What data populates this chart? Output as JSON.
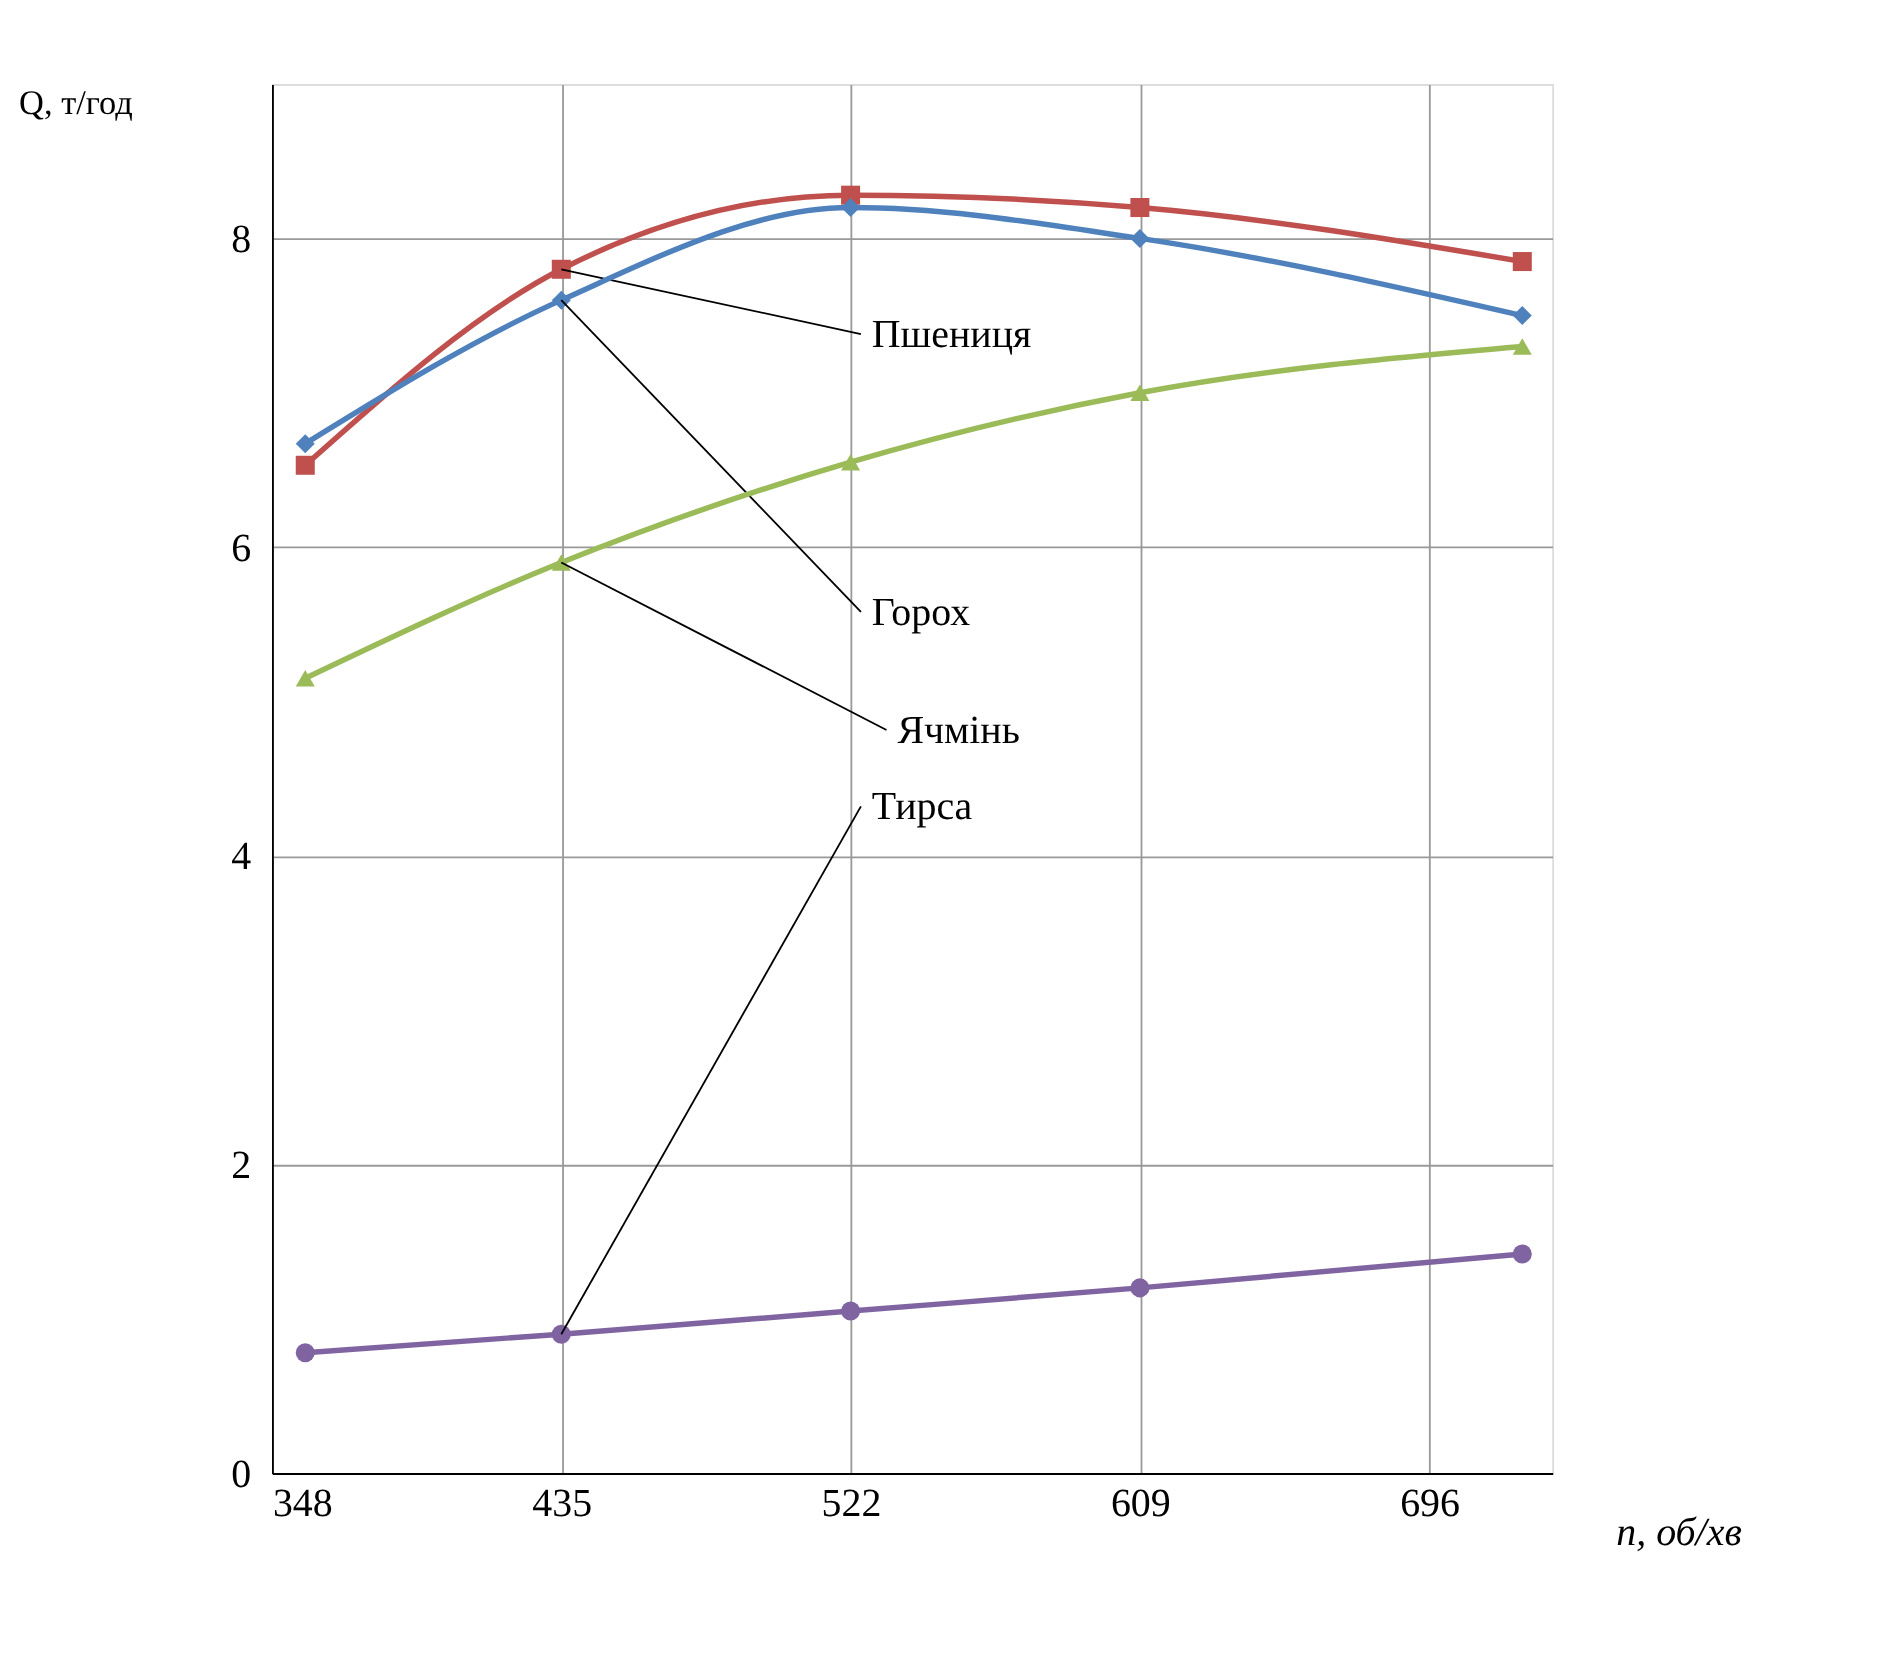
{
  "chart_data": {
    "type": "line",
    "xlabel": "n, об/хв",
    "ylabel": "Q, т/год",
    "x": [
      358,
      435,
      522,
      609,
      724
    ],
    "series": [
      {
        "name": "Пшениця",
        "color": "#c0504d",
        "marker": "square",
        "values": [
          6.53,
          7.8,
          8.28,
          8.2,
          7.85
        ]
      },
      {
        "name": "Горох",
        "color": "#4f81bd",
        "marker": "diamond",
        "values": [
          6.67,
          7.6,
          8.2,
          8.0,
          7.5
        ]
      },
      {
        "name": "Ячмінь",
        "color": "#9bbb59",
        "marker": "triangle",
        "values": [
          5.15,
          5.9,
          6.55,
          7.0,
          7.3
        ]
      },
      {
        "name": "Тирса",
        "color": "#8064a2",
        "marker": "circle",
        "values": [
          0.78,
          0.9,
          1.05,
          1.2,
          1.42
        ]
      }
    ],
    "xlim": [
      348,
      733
    ],
    "xticks": [
      348,
      435,
      522,
      609,
      696
    ],
    "ylim": [
      0,
      9
    ],
    "yticks": [
      0,
      2,
      4,
      6,
      8
    ],
    "grid": true,
    "legend": false
  }
}
